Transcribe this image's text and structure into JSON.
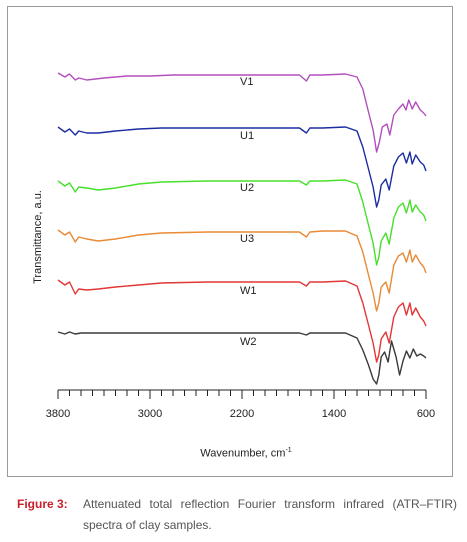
{
  "chart_data": {
    "type": "line",
    "xlabel": "Wavenumber, cm",
    "xlabel_sup": "-1",
    "ylabel": "Transmittance, a.u.",
    "x_reversed": true,
    "xlim": [
      3800,
      600
    ],
    "xticks": [
      "3800",
      "3000",
      "2200",
      "1400",
      "600"
    ],
    "grid": false,
    "series": [
      {
        "name": "V1",
        "color": "#b24fbd",
        "points": [
          [
            3800,
            66
          ],
          [
            3740,
            70
          ],
          [
            3700,
            67
          ],
          [
            3650,
            73
          ],
          [
            3620,
            71
          ],
          [
            3550,
            73
          ],
          [
            3400,
            71
          ],
          [
            3200,
            69
          ],
          [
            3000,
            69
          ],
          [
            2800,
            68
          ],
          [
            2400,
            68
          ],
          [
            2000,
            68
          ],
          [
            1700,
            68
          ],
          [
            1640,
            74
          ],
          [
            1610,
            68
          ],
          [
            1500,
            68
          ],
          [
            1300,
            67
          ],
          [
            1200,
            70
          ],
          [
            1150,
            82
          ],
          [
            1100,
            105
          ],
          [
            1060,
            123
          ],
          [
            1030,
            145
          ],
          [
            1005,
            135
          ],
          [
            980,
            120
          ],
          [
            940,
            117
          ],
          [
            915,
            128
          ],
          [
            880,
            108
          ],
          [
            840,
            102
          ],
          [
            800,
            97
          ],
          [
            775,
            103
          ],
          [
            750,
            93
          ],
          [
            720,
            102
          ],
          [
            690,
            95
          ],
          [
            650,
            103
          ],
          [
            620,
            106
          ],
          [
            600,
            109
          ]
        ]
      },
      {
        "name": "U1",
        "color": "#1c2da3",
        "points": [
          [
            3800,
            120
          ],
          [
            3740,
            125
          ],
          [
            3700,
            122
          ],
          [
            3650,
            128
          ],
          [
            3620,
            124
          ],
          [
            3550,
            126
          ],
          [
            3450,
            126
          ],
          [
            3300,
            124
          ],
          [
            3100,
            122
          ],
          [
            2900,
            121
          ],
          [
            2500,
            121
          ],
          [
            2000,
            121
          ],
          [
            1700,
            121
          ],
          [
            1640,
            126
          ],
          [
            1610,
            121
          ],
          [
            1500,
            121
          ],
          [
            1300,
            120
          ],
          [
            1200,
            124
          ],
          [
            1150,
            140
          ],
          [
            1100,
            162
          ],
          [
            1060,
            180
          ],
          [
            1030,
            200
          ],
          [
            1010,
            193
          ],
          [
            990,
            178
          ],
          [
            950,
            172
          ],
          [
            920,
            183
          ],
          [
            880,
            159
          ],
          [
            840,
            150
          ],
          [
            800,
            146
          ],
          [
            770,
            156
          ],
          [
            740,
            145
          ],
          [
            720,
            157
          ],
          [
            690,
            148
          ],
          [
            650,
            155
          ],
          [
            620,
            158
          ],
          [
            600,
            164
          ]
        ]
      },
      {
        "name": "U2",
        "color": "#46e02a",
        "points": [
          [
            3800,
            174
          ],
          [
            3740,
            179
          ],
          [
            3700,
            176
          ],
          [
            3650,
            185
          ],
          [
            3620,
            180
          ],
          [
            3550,
            181
          ],
          [
            3450,
            183
          ],
          [
            3300,
            181
          ],
          [
            3100,
            177
          ],
          [
            2900,
            175
          ],
          [
            2500,
            174
          ],
          [
            2000,
            174
          ],
          [
            1700,
            174
          ],
          [
            1640,
            178
          ],
          [
            1610,
            174
          ],
          [
            1500,
            174
          ],
          [
            1300,
            173
          ],
          [
            1200,
            177
          ],
          [
            1150,
            195
          ],
          [
            1100,
            218
          ],
          [
            1060,
            236
          ],
          [
            1030,
            258
          ],
          [
            1010,
            250
          ],
          [
            990,
            234
          ],
          [
            950,
            226
          ],
          [
            920,
            237
          ],
          [
            880,
            211
          ],
          [
            840,
            200
          ],
          [
            800,
            196
          ],
          [
            770,
            206
          ],
          [
            740,
            193
          ],
          [
            720,
            205
          ],
          [
            690,
            198
          ],
          [
            650,
            205
          ],
          [
            620,
            208
          ],
          [
            600,
            214
          ]
        ]
      },
      {
        "name": "U3",
        "color": "#e98a36",
        "points": [
          [
            3800,
            223
          ],
          [
            3740,
            228
          ],
          [
            3700,
            225
          ],
          [
            3650,
            235
          ],
          [
            3620,
            230
          ],
          [
            3550,
            232
          ],
          [
            3450,
            234
          ],
          [
            3300,
            232
          ],
          [
            3100,
            228
          ],
          [
            2900,
            226
          ],
          [
            2500,
            225
          ],
          [
            2000,
            225
          ],
          [
            1700,
            225
          ],
          [
            1640,
            230
          ],
          [
            1610,
            225
          ],
          [
            1500,
            224
          ],
          [
            1300,
            224
          ],
          [
            1200,
            229
          ],
          [
            1150,
            245
          ],
          [
            1100,
            268
          ],
          [
            1060,
            286
          ],
          [
            1030,
            304
          ],
          [
            1010,
            296
          ],
          [
            990,
            280
          ],
          [
            950,
            275
          ],
          [
            920,
            286
          ],
          [
            880,
            258
          ],
          [
            840,
            249
          ],
          [
            800,
            246
          ],
          [
            770,
            255
          ],
          [
            740,
            243
          ],
          [
            720,
            255
          ],
          [
            690,
            248
          ],
          [
            650,
            256
          ],
          [
            620,
            260
          ],
          [
            600,
            266
          ]
        ]
      },
      {
        "name": "W1",
        "color": "#e33636",
        "points": [
          [
            3800,
            273
          ],
          [
            3740,
            278
          ],
          [
            3700,
            275
          ],
          [
            3650,
            287
          ],
          [
            3620,
            282
          ],
          [
            3550,
            283
          ],
          [
            3450,
            282
          ],
          [
            3300,
            280
          ],
          [
            3100,
            278
          ],
          [
            2900,
            276
          ],
          [
            2500,
            275
          ],
          [
            2000,
            275
          ],
          [
            1700,
            275
          ],
          [
            1640,
            279
          ],
          [
            1610,
            275
          ],
          [
            1500,
            275
          ],
          [
            1300,
            274
          ],
          [
            1200,
            279
          ],
          [
            1150,
            296
          ],
          [
            1100,
            318
          ],
          [
            1060,
            336
          ],
          [
            1030,
            355
          ],
          [
            1010,
            348
          ],
          [
            990,
            332
          ],
          [
            950,
            325
          ],
          [
            920,
            336
          ],
          [
            880,
            310
          ],
          [
            840,
            300
          ],
          [
            800,
            296
          ],
          [
            770,
            308
          ],
          [
            740,
            296
          ],
          [
            720,
            308
          ],
          [
            690,
            301
          ],
          [
            650,
            310
          ],
          [
            620,
            314
          ],
          [
            600,
            319
          ]
        ]
      },
      {
        "name": "W2",
        "color": "#3a3a3a",
        "points": [
          [
            3800,
            325
          ],
          [
            3740,
            327
          ],
          [
            3700,
            325
          ],
          [
            3650,
            327
          ],
          [
            3600,
            326
          ],
          [
            3400,
            326
          ],
          [
            3000,
            326
          ],
          [
            2500,
            326
          ],
          [
            2000,
            326
          ],
          [
            1700,
            326
          ],
          [
            1640,
            328
          ],
          [
            1610,
            326
          ],
          [
            1500,
            326
          ],
          [
            1300,
            326
          ],
          [
            1200,
            331
          ],
          [
            1150,
            343
          ],
          [
            1100,
            358
          ],
          [
            1060,
            372
          ],
          [
            1030,
            377
          ],
          [
            1010,
            368
          ],
          [
            990,
            350
          ],
          [
            960,
            345
          ],
          [
            930,
            355
          ],
          [
            900,
            334
          ],
          [
            860,
            350
          ],
          [
            830,
            368
          ],
          [
            800,
            354
          ],
          [
            770,
            344
          ],
          [
            740,
            351
          ],
          [
            710,
            342
          ],
          [
            680,
            349
          ],
          [
            650,
            347
          ],
          [
            620,
            349
          ],
          [
            600,
            351
          ]
        ]
      }
    ]
  },
  "caption": {
    "figure_label": "Figure 3:",
    "text": "Attenuated total reflection Fourier transform infrared (ATR–FTIR) spectra of clay samples."
  }
}
